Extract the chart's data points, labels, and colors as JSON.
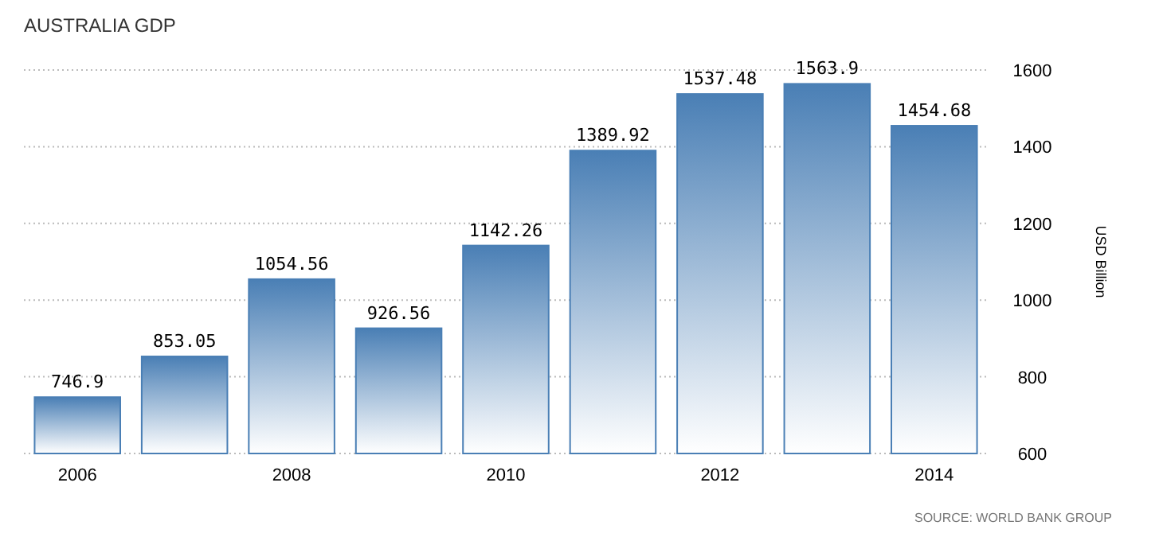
{
  "chart_data": {
    "type": "bar",
    "title": "AUSTRALIA GDP",
    "ylabel": "USD Billion",
    "categories": [
      "2006",
      null,
      "2008",
      null,
      "2010",
      null,
      "2012",
      null,
      "2014"
    ],
    "values": [
      746.9,
      853.05,
      1054.56,
      926.56,
      1142.26,
      1389.92,
      1537.48,
      1563.9,
      1454.68
    ],
    "color": "#4a7fb5",
    "ylim": [
      600,
      1600
    ],
    "yticks": [
      600,
      800,
      1000,
      1200,
      1400,
      1600
    ],
    "grid": "y",
    "data_labels": true,
    "annotations": [
      "SOURCE: WORLD BANK GROUP"
    ]
  }
}
